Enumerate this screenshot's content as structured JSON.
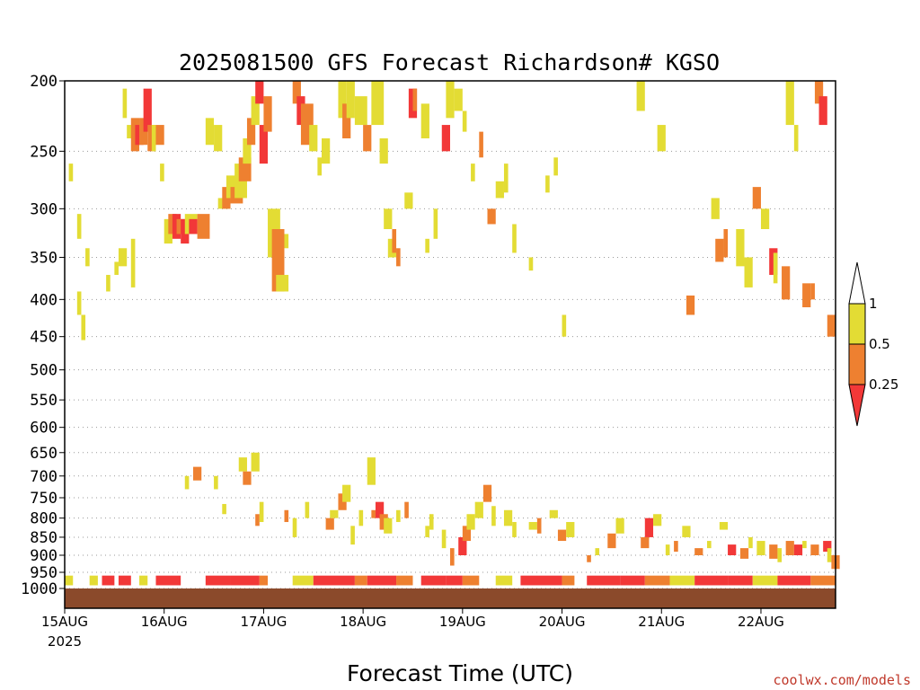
{
  "chart_data": {
    "type": "heatmap",
    "title": "2025081500 GFS Forecast Richardson# KGSO",
    "xlabel": "Forecast Time (UTC)",
    "ylabel": "",
    "x_ticks": [
      {
        "label": "15AUG",
        "hour": 0
      },
      {
        "label": "16AUG",
        "hour": 24
      },
      {
        "label": "17AUG",
        "hour": 48
      },
      {
        "label": "18AUG",
        "hour": 72
      },
      {
        "label": "19AUG",
        "hour": 96
      },
      {
        "label": "20AUG",
        "hour": 120
      },
      {
        "label": "21AUG",
        "hour": 144
      },
      {
        "label": "22AUG",
        "hour": 168
      }
    ],
    "x_year_label": "2025",
    "xlim_hours": [
      0,
      186
    ],
    "y_ticks": [
      200,
      250,
      300,
      350,
      400,
      450,
      500,
      550,
      600,
      650,
      700,
      750,
      800,
      850,
      900,
      950,
      1000
    ],
    "ylim_hpa": [
      200,
      1000
    ],
    "y_scale": "log-pressure",
    "grid": "dotted horizontal at y ticks",
    "ground_color": "#8b4a2b",
    "legend": {
      "placement": "right",
      "levels": [
        {
          "label": "1",
          "color": "#ffffff"
        },
        {
          "label": "0.5",
          "color": "#e3dc34"
        },
        {
          "label": "0.25",
          "color": "#ee8030"
        },
        {
          "label": "",
          "color": "#f23838"
        }
      ]
    },
    "categories": [
      {
        "name": "< 0.25",
        "color": "#f23838"
      },
      {
        "name": "0.25 - 0.5",
        "color": "#ee8030"
      },
      {
        "name": "0.5 - 1",
        "color": "#e3dc34"
      }
    ],
    "cells": [
      [
        1,
        260,
        275,
        0,
        2
      ],
      [
        3,
        305,
        330,
        0,
        2
      ],
      [
        3,
        390,
        420,
        0,
        2
      ],
      [
        4,
        420,
        455,
        0,
        2
      ],
      [
        5,
        340,
        360,
        0,
        2
      ],
      [
        10,
        370,
        390,
        0,
        2
      ],
      [
        13,
        340,
        360,
        1,
        2
      ],
      [
        12,
        355,
        370,
        0,
        2
      ],
      [
        16,
        330,
        385,
        0,
        2
      ],
      [
        14,
        205,
        225,
        0,
        2
      ],
      [
        15,
        230,
        240,
        1,
        2
      ],
      [
        16,
        225,
        250,
        1,
        1
      ],
      [
        17,
        230,
        245,
        1,
        0
      ],
      [
        18,
        225,
        245,
        1,
        1
      ],
      [
        19,
        205,
        235,
        1,
        0
      ],
      [
        20,
        230,
        250,
        1,
        1
      ],
      [
        21,
        230,
        250,
        0,
        2
      ],
      [
        22,
        230,
        245,
        1,
        1
      ],
      [
        23,
        260,
        275,
        0,
        2
      ],
      [
        24,
        310,
        335,
        1,
        2
      ],
      [
        25,
        305,
        325,
        1,
        1
      ],
      [
        26,
        305,
        330,
        1,
        0
      ],
      [
        27,
        310,
        325,
        1,
        1
      ],
      [
        28,
        310,
        335,
        1,
        0
      ],
      [
        29,
        305,
        325,
        2,
        2
      ],
      [
        30,
        310,
        325,
        1,
        0
      ],
      [
        32,
        305,
        330,
        2,
        1
      ],
      [
        34,
        225,
        245,
        1,
        2
      ],
      [
        36,
        230,
        250,
        1,
        2
      ],
      [
        37,
        290,
        300,
        2,
        2
      ],
      [
        38,
        280,
        300,
        1,
        1
      ],
      [
        39,
        270,
        290,
        2,
        2
      ],
      [
        40,
        280,
        295,
        2,
        1
      ],
      [
        41,
        260,
        290,
        2,
        2
      ],
      [
        42,
        255,
        275,
        2,
        1
      ],
      [
        43,
        240,
        260,
        1,
        2
      ],
      [
        44,
        225,
        245,
        1,
        1
      ],
      [
        45,
        210,
        230,
        1,
        2
      ],
      [
        46,
        200,
        215,
        1,
        0
      ],
      [
        47,
        230,
        260,
        1,
        0
      ],
      [
        48,
        210,
        235,
        1,
        1
      ],
      [
        49,
        300,
        350,
        2,
        2
      ],
      [
        50,
        320,
        390,
        2,
        1
      ],
      [
        51,
        370,
        390,
        2,
        2
      ],
      [
        53,
        325,
        340,
        0,
        2
      ],
      [
        55,
        200,
        215,
        1,
        1
      ],
      [
        56,
        210,
        230,
        1,
        0
      ],
      [
        57,
        215,
        245,
        2,
        1
      ],
      [
        59,
        230,
        250,
        1,
        2
      ],
      [
        61,
        255,
        270,
        0,
        2
      ],
      [
        62,
        240,
        260,
        1,
        2
      ],
      [
        66,
        200,
        225,
        1,
        2
      ],
      [
        67,
        215,
        240,
        1,
        1
      ],
      [
        68,
        200,
        225,
        1,
        2
      ],
      [
        70,
        210,
        230,
        2,
        2
      ],
      [
        72,
        230,
        250,
        1,
        1
      ],
      [
        74,
        200,
        230,
        2,
        2
      ],
      [
        76,
        240,
        260,
        1,
        2
      ],
      [
        77,
        300,
        320,
        1,
        2
      ],
      [
        78,
        330,
        350,
        1,
        2
      ],
      [
        79,
        320,
        345,
        0,
        1
      ],
      [
        80,
        340,
        360,
        0,
        1
      ],
      [
        82,
        285,
        300,
        1,
        2
      ],
      [
        83,
        205,
        225,
        1,
        0
      ],
      [
        84,
        205,
        220,
        0,
        1
      ],
      [
        86,
        215,
        240,
        1,
        2
      ],
      [
        87,
        330,
        345,
        0,
        2
      ],
      [
        89,
        300,
        330,
        0,
        2
      ],
      [
        91,
        230,
        250,
        1,
        0
      ],
      [
        92,
        200,
        225,
        1,
        2
      ],
      [
        94,
        205,
        220,
        1,
        2
      ],
      [
        96,
        220,
        235,
        0,
        2
      ],
      [
        98,
        260,
        275,
        0,
        2
      ],
      [
        100,
        235,
        255,
        0,
        1
      ],
      [
        102,
        300,
        315,
        1,
        1
      ],
      [
        104,
        275,
        290,
        1,
        2
      ],
      [
        106,
        260,
        285,
        0,
        2
      ],
      [
        108,
        315,
        345,
        0,
        2
      ],
      [
        112,
        350,
        365,
        0,
        2
      ],
      [
        116,
        270,
        285,
        0,
        2
      ],
      [
        118,
        255,
        270,
        0,
        2
      ],
      [
        120,
        420,
        450,
        0,
        2
      ],
      [
        138,
        200,
        220,
        1,
        2
      ],
      [
        143,
        230,
        250,
        1,
        2
      ],
      [
        150,
        395,
        420,
        1,
        1
      ],
      [
        156,
        290,
        310,
        1,
        2
      ],
      [
        157,
        330,
        355,
        1,
        1
      ],
      [
        159,
        320,
        350,
        0,
        1
      ],
      [
        162,
        320,
        360,
        1,
        2
      ],
      [
        164,
        350,
        385,
        1,
        2
      ],
      [
        166,
        280,
        300,
        1,
        1
      ],
      [
        168,
        300,
        320,
        1,
        2
      ],
      [
        170,
        340,
        370,
        1,
        0
      ],
      [
        171,
        345,
        380,
        0,
        2
      ],
      [
        173,
        360,
        400,
        1,
        1
      ],
      [
        174,
        200,
        230,
        1,
        2
      ],
      [
        176,
        230,
        250,
        0,
        2
      ],
      [
        178,
        380,
        410,
        1,
        1
      ],
      [
        180,
        380,
        400,
        0,
        1
      ],
      [
        181,
        200,
        215,
        1,
        1
      ],
      [
        182,
        210,
        230,
        1,
        0
      ],
      [
        184,
        420,
        450,
        1,
        1
      ],
      [
        29,
        700,
        730,
        0,
        2
      ],
      [
        31,
        680,
        710,
        1,
        1
      ],
      [
        36,
        700,
        730,
        0,
        2
      ],
      [
        38,
        765,
        790,
        0,
        2
      ],
      [
        42,
        660,
        690,
        1,
        2
      ],
      [
        43,
        690,
        720,
        1,
        1
      ],
      [
        45,
        650,
        690,
        1,
        2
      ],
      [
        46,
        790,
        820,
        0,
        1
      ],
      [
        47,
        760,
        810,
        0,
        2
      ],
      [
        53,
        780,
        810,
        0,
        1
      ],
      [
        55,
        800,
        850,
        0,
        2
      ],
      [
        58,
        760,
        800,
        0,
        2
      ],
      [
        63,
        800,
        830,
        1,
        1
      ],
      [
        64,
        780,
        800,
        1,
        2
      ],
      [
        66,
        740,
        780,
        1,
        1
      ],
      [
        67,
        720,
        760,
        1,
        2
      ],
      [
        69,
        820,
        870,
        0,
        2
      ],
      [
        71,
        780,
        820,
        0,
        2
      ],
      [
        73,
        660,
        720,
        1,
        2
      ],
      [
        74,
        780,
        800,
        0,
        1
      ],
      [
        75,
        760,
        800,
        1,
        0
      ],
      [
        76,
        790,
        830,
        1,
        1
      ],
      [
        77,
        800,
        840,
        1,
        2
      ],
      [
        80,
        780,
        810,
        0,
        2
      ],
      [
        82,
        760,
        800,
        0,
        1
      ],
      [
        87,
        820,
        850,
        0,
        2
      ],
      [
        88,
        790,
        830,
        0,
        2
      ],
      [
        91,
        830,
        880,
        0,
        2
      ],
      [
        93,
        880,
        930,
        0,
        1
      ],
      [
        95,
        850,
        900,
        1,
        0
      ],
      [
        96,
        820,
        860,
        1,
        1
      ],
      [
        97,
        790,
        830,
        1,
        2
      ],
      [
        99,
        760,
        800,
        1,
        2
      ],
      [
        101,
        720,
        760,
        1,
        1
      ],
      [
        103,
        770,
        820,
        0,
        2
      ],
      [
        106,
        780,
        820,
        1,
        2
      ],
      [
        108,
        810,
        850,
        0,
        2
      ],
      [
        112,
        810,
        830,
        1,
        2
      ],
      [
        114,
        800,
        840,
        0,
        1
      ],
      [
        117,
        780,
        800,
        1,
        2
      ],
      [
        119,
        830,
        860,
        1,
        1
      ],
      [
        121,
        810,
        850,
        1,
        2
      ],
      [
        126,
        900,
        920,
        0,
        1
      ],
      [
        128,
        880,
        900,
        0,
        2
      ],
      [
        131,
        840,
        880,
        1,
        1
      ],
      [
        133,
        800,
        840,
        1,
        2
      ],
      [
        139,
        850,
        880,
        1,
        1
      ],
      [
        140,
        800,
        850,
        1,
        0
      ],
      [
        142,
        790,
        820,
        1,
        2
      ],
      [
        145,
        870,
        900,
        0,
        2
      ],
      [
        147,
        860,
        890,
        0,
        1
      ],
      [
        149,
        820,
        850,
        1,
        2
      ],
      [
        152,
        880,
        900,
        1,
        1
      ],
      [
        155,
        860,
        880,
        0,
        2
      ],
      [
        158,
        810,
        830,
        1,
        2
      ],
      [
        160,
        870,
        900,
        1,
        0
      ],
      [
        163,
        880,
        910,
        1,
        1
      ],
      [
        165,
        850,
        880,
        0,
        2
      ],
      [
        167,
        860,
        900,
        1,
        2
      ],
      [
        170,
        870,
        910,
        1,
        1
      ],
      [
        172,
        880,
        920,
        0,
        2
      ],
      [
        174,
        860,
        900,
        1,
        1
      ],
      [
        176,
        870,
        900,
        1,
        0
      ],
      [
        178,
        860,
        880,
        0,
        2
      ],
      [
        180,
        870,
        900,
        1,
        1
      ],
      [
        183,
        860,
        890,
        1,
        0
      ],
      [
        184,
        880,
        920,
        0,
        2
      ],
      [
        185,
        900,
        940,
        1,
        1
      ]
    ]
  },
  "credit": "coolwx.com/models",
  "layout": {
    "plot_left": 72,
    "plot_right": 930,
    "plot_top": 90,
    "plot_bottom": 655,
    "ground_top": 655,
    "ground_bottom": 677
  }
}
